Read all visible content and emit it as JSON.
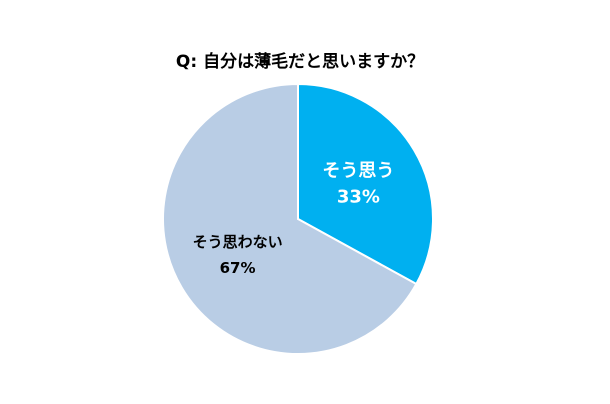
{
  "chart_data": {
    "type": "pie",
    "title": "Q: 自分は薄毛だと思いますか？",
    "categories": [
      "そう思う",
      "そう思わない"
    ],
    "values": [
      33,
      67
    ],
    "value_labels": [
      "33%",
      "67%"
    ],
    "colors": [
      "#00b0f0",
      "#b9cde5"
    ],
    "label_colors": [
      "#ffffff",
      "#000000"
    ]
  }
}
